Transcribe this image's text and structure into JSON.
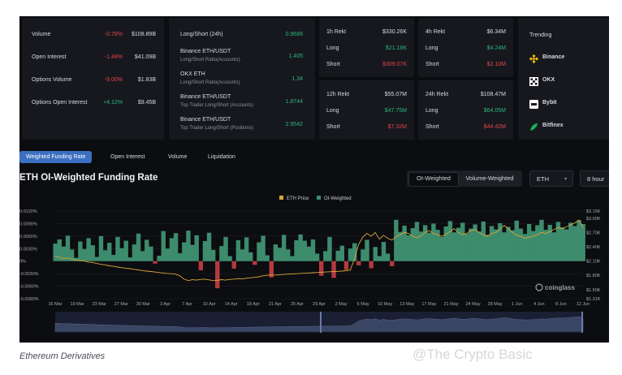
{
  "stats": [
    {
      "label": "Volume",
      "change": "-0.78%",
      "value": "$108.89B",
      "dir": "down"
    },
    {
      "label": "Open Interest",
      "change": "-1.48%",
      "value": "$41.09B",
      "dir": "down"
    },
    {
      "label": "Options Volume",
      "change": "-9.00%",
      "value": "$1.83B",
      "dir": "down"
    },
    {
      "label": "Options Open Interest",
      "change": "+4.12%",
      "value": "$9.45B",
      "dir": "up"
    }
  ],
  "ratios": [
    {
      "title": "Long/Short (24h)",
      "subtitle": "",
      "value": "0.9689"
    },
    {
      "title": "Binance ETH/USDT",
      "subtitle": "Long/Short Ratio(Accounts)",
      "value": "1.405"
    },
    {
      "title": "OKX ETH",
      "subtitle": "Long/Short Ratio(Accounts)",
      "value": "1.34"
    },
    {
      "title": "Binance ETH/USDT",
      "subtitle": "Top Trader Long/Short (Accounts)",
      "value": "1.8744"
    },
    {
      "title": "Binance ETH/USDT",
      "subtitle": "Top Trader Long/Short (Positions)",
      "value": "2.9542"
    }
  ],
  "rekt": [
    {
      "period": "1h Rekt",
      "total": "$330.26K",
      "long_label": "Long",
      "long": "$21.18K",
      "short_label": "Short",
      "short": "$309.07K"
    },
    {
      "period": "4h Rekt",
      "total": "$6.34M",
      "long_label": "Long",
      "long": "$4.24M",
      "short_label": "Short",
      "short": "$2.10M"
    },
    {
      "period": "12h Rekt",
      "total": "$55.07M",
      "long_label": "Long",
      "long": "$47.75M",
      "short_label": "Short",
      "short": "$7.32M"
    },
    {
      "period": "24h Rekt",
      "total": "$108.47M",
      "long_label": "Long",
      "long": "$64.05M",
      "short_label": "Short",
      "short": "$44.42M"
    }
  ],
  "trending": {
    "title": "Trending",
    "items": [
      {
        "name": "Binance",
        "icon": "binance-icon",
        "color": "#f0b90b"
      },
      {
        "name": "OKX",
        "icon": "okx-icon",
        "color": "#ffffff"
      },
      {
        "name": "Bybit",
        "icon": "bybit-icon",
        "color": "#ffffff"
      },
      {
        "name": "Bitfinex",
        "icon": "bitfinex-icon",
        "color": "#16b157"
      }
    ]
  },
  "tabs": [
    "Weighted Funding Rate",
    "Open Interest",
    "Volume",
    "Liquidation"
  ],
  "active_tab": 0,
  "toggle": {
    "options": [
      "OI-Weighted",
      "Volume-Weighted"
    ],
    "selected": 0
  },
  "asset_select": {
    "value": "ETH"
  },
  "interval_select": {
    "value": "8 hour"
  },
  "watermark_chart": "coinglass",
  "caption": "Ethereum Derivatives",
  "watermark": "@The Crypto Basic",
  "colors": {
    "positive": "#3d8c6d",
    "negative": "#b33a3f",
    "price": "#d9a53a",
    "accent": "#3b6fc1"
  },
  "chart_data": {
    "type": "area",
    "title": "ETH OI-Weighted Funding Rate",
    "legend": [
      "ETH Price",
      "OI-Weighted"
    ],
    "legend_position": "top-center",
    "x_ticks": [
      "16 Mar",
      "19 Mar",
      "23 Mar",
      "27 Mar",
      "30 Mar",
      "3 Apr",
      "7 Apr",
      "10 Apr",
      "14 Apr",
      "18 Apr",
      "21 Apr",
      "25 Apr",
      "29 Apr",
      "2 May",
      "6 May",
      "10 May",
      "13 May",
      "17 May",
      "21 May",
      "24 May",
      "28 May",
      "1 Jun",
      "4 Jun",
      "8 Jun",
      "12 Jun"
    ],
    "y_left_ticks": [
      "0.0120%",
      "0.0090%",
      "0.0060%",
      "0.0030%",
      "0%",
      "-0.0030%",
      "-0.0060%",
      "-0.0090%"
    ],
    "y_left_range": [
      -0.009,
      0.012
    ],
    "y_right_ticks": [
      "$3.15K",
      "$3.00K",
      "$2.70K",
      "$2.40K",
      "$2.10K",
      "$1.80K",
      "$1.50K",
      "$1.31K"
    ],
    "y_right_range": [
      1310,
      3150
    ],
    "series": [
      {
        "name": "OI-Weighted",
        "unit": "%",
        "type": "area",
        "values": [
          0.0042,
          0.0052,
          0.0035,
          0.0061,
          0.0028,
          0.0008,
          0.0047,
          0.0029,
          0.0055,
          0.0038,
          0.001,
          0.006,
          0.0026,
          0.0044,
          0.0015,
          0.0058,
          0.0031,
          0.0049,
          0.0009,
          0.004,
          0.0066,
          0.0024,
          0.0051,
          0.0035,
          -0.0006,
          0.0013,
          0.0072,
          0.003,
          0.0055,
          0.0067,
          0.0019,
          0.0045,
          0.0073,
          0.0039,
          0.0062,
          -0.0022,
          0.0048,
          0.0068,
          0.0027,
          -0.0065,
          0.0036,
          0.0058,
          0.0012,
          -0.0018,
          0.005,
          0.0028,
          0.0057,
          0.0021,
          -0.0009,
          0.0045,
          0.0061,
          0.0014,
          -0.0039,
          0.004,
          0.0032,
          0.0063,
          0.0028,
          0.0012,
          0.005,
          0.0064,
          0.0049,
          0.0035,
          0.0052,
          0.0018,
          -0.0035,
          0.0024,
          0.0058,
          -0.004,
          0.0025,
          0.0037,
          -0.0021,
          0.003,
          0.0043,
          -0.001,
          0.0028,
          0.0051,
          -0.0017,
          0.0034,
          0.0012,
          0.0046,
          0.0018,
          -0.0012,
          0.0099,
          0.007,
          0.0085,
          0.0062,
          0.0079,
          0.0094,
          0.0071,
          0.0086,
          0.0068,
          0.009,
          0.0075,
          0.0058,
          0.0083,
          0.0096,
          0.0069,
          0.008,
          0.0092,
          0.0066,
          0.0078,
          0.0088,
          0.0071,
          0.0095,
          0.0063,
          0.0084,
          0.0076,
          0.0091,
          0.0069,
          0.0082,
          0.0074,
          0.0097,
          0.0078,
          0.0065,
          0.0089,
          0.0072,
          0.0086,
          0.0099,
          0.0075,
          0.0087,
          0.0069,
          0.0094,
          0.0081,
          0.0076,
          0.0092,
          0.0084,
          0.0098,
          0.0089
        ]
      },
      {
        "name": "ETH Price",
        "unit": "USD",
        "type": "line",
        "values": [
          2200,
          2180,
          2150,
          2165,
          2140,
          2120,
          2110,
          2100,
          2080,
          2070,
          2050,
          2030,
          2020,
          2000,
          1990,
          1975,
          1960,
          1950,
          1940,
          1925,
          1915,
          1900,
          1890,
          1880,
          1870,
          1860,
          1850,
          1840,
          1835,
          1825,
          1790,
          1720,
          1690,
          1710,
          1700,
          1715,
          1720,
          1705,
          1690,
          1695,
          1710,
          1700,
          1715,
          1720,
          1730,
          1725,
          1740,
          1750,
          1760,
          1770,
          1790,
          1800,
          1810,
          1805,
          1815,
          1820,
          1825,
          1830,
          1835,
          1840,
          1845,
          1850,
          1855,
          1860,
          1865,
          1870,
          1875,
          1880,
          1885,
          1890,
          1900,
          1910,
          2150,
          2450,
          2600,
          2680,
          2620,
          2700,
          2560,
          2640,
          2580,
          2540,
          2610,
          2650,
          2700,
          2680,
          2620,
          2590,
          2630,
          2700,
          2740,
          2680,
          2650,
          2620,
          2660,
          2720,
          2780,
          2700,
          2650,
          2680,
          2740,
          2760,
          2700,
          2650,
          2620,
          2680,
          2700,
          2760,
          2850,
          2780,
          2700,
          2640,
          2620,
          2580,
          2600,
          2620,
          2650,
          2700,
          2680,
          2720,
          2760,
          2800,
          2780,
          2820,
          2860,
          2900,
          2960,
          2800
        ]
      }
    ]
  }
}
